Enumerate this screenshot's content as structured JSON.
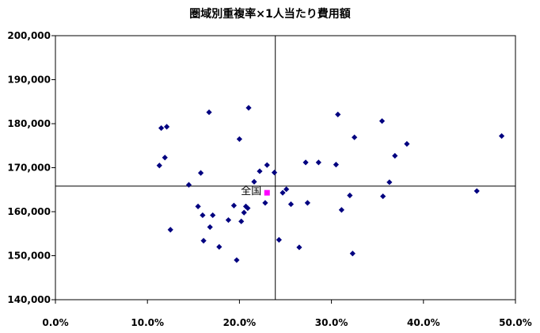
{
  "chart_data": {
    "type": "scatter",
    "title": "圏域別重複率×1人当たり費用額",
    "xlabel": "",
    "ylabel": "",
    "xlim": [
      0,
      0.5
    ],
    "ylim": [
      140000,
      200000
    ],
    "x_ticks": [
      "0.0%",
      "10.0%",
      "20.0%",
      "30.0%",
      "40.0%",
      "50.0%"
    ],
    "y_ticks": [
      "140,000",
      "150,000",
      "160,000",
      "170,000",
      "180,000",
      "190,000",
      "200,000"
    ],
    "grid": false,
    "legend": "none",
    "reference_lines": {
      "x": 0.239,
      "y": 165800
    },
    "colors": {
      "points": "#000080",
      "national": "#ff00ff",
      "axis": "#000000"
    },
    "national_point": {
      "label": "全国",
      "x": 0.23,
      "y": 164300
    },
    "points": [
      {
        "x": 0.115,
        "y": 179000
      },
      {
        "x": 0.121,
        "y": 179300
      },
      {
        "x": 0.119,
        "y": 172300
      },
      {
        "x": 0.113,
        "y": 170500
      },
      {
        "x": 0.125,
        "y": 155900
      },
      {
        "x": 0.145,
        "y": 166100
      },
      {
        "x": 0.155,
        "y": 161200
      },
      {
        "x": 0.158,
        "y": 168800
      },
      {
        "x": 0.16,
        "y": 159200
      },
      {
        "x": 0.161,
        "y": 153400
      },
      {
        "x": 0.167,
        "y": 182600
      },
      {
        "x": 0.168,
        "y": 156500
      },
      {
        "x": 0.171,
        "y": 159200
      },
      {
        "x": 0.178,
        "y": 152000
      },
      {
        "x": 0.188,
        "y": 158100
      },
      {
        "x": 0.194,
        "y": 161400
      },
      {
        "x": 0.197,
        "y": 149000
      },
      {
        "x": 0.2,
        "y": 176500
      },
      {
        "x": 0.202,
        "y": 157800
      },
      {
        "x": 0.205,
        "y": 159800
      },
      {
        "x": 0.207,
        "y": 161200
      },
      {
        "x": 0.209,
        "y": 160800
      },
      {
        "x": 0.21,
        "y": 183600
      },
      {
        "x": 0.216,
        "y": 166800
      },
      {
        "x": 0.222,
        "y": 169200
      },
      {
        "x": 0.228,
        "y": 162000
      },
      {
        "x": 0.23,
        "y": 170600
      },
      {
        "x": 0.238,
        "y": 168900
      },
      {
        "x": 0.243,
        "y": 153600
      },
      {
        "x": 0.247,
        "y": 164300
      },
      {
        "x": 0.251,
        "y": 165100
      },
      {
        "x": 0.256,
        "y": 161700
      },
      {
        "x": 0.265,
        "y": 151900
      },
      {
        "x": 0.272,
        "y": 171200
      },
      {
        "x": 0.274,
        "y": 162000
      },
      {
        "x": 0.286,
        "y": 171200
      },
      {
        "x": 0.305,
        "y": 170700
      },
      {
        "x": 0.307,
        "y": 182100
      },
      {
        "x": 0.311,
        "y": 160400
      },
      {
        "x": 0.32,
        "y": 163700
      },
      {
        "x": 0.323,
        "y": 150500
      },
      {
        "x": 0.325,
        "y": 176900
      },
      {
        "x": 0.355,
        "y": 180600
      },
      {
        "x": 0.356,
        "y": 163500
      },
      {
        "x": 0.363,
        "y": 166700
      },
      {
        "x": 0.369,
        "y": 172700
      },
      {
        "x": 0.382,
        "y": 175400
      },
      {
        "x": 0.458,
        "y": 164700
      },
      {
        "x": 0.485,
        "y": 177200
      }
    ]
  }
}
